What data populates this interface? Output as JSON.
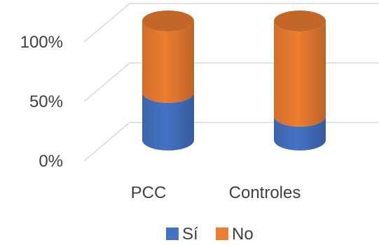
{
  "chart_data": {
    "type": "bar",
    "variant": "stacked-100-percent-3d-cylinder",
    "title": "",
    "xlabel": "",
    "ylabel": "",
    "categories": [
      "PCC",
      "Controles"
    ],
    "series": [
      {
        "name": "Sí",
        "values": [
          40,
          20
        ],
        "color": "#4472C4"
      },
      {
        "name": "No",
        "values": [
          60,
          80
        ],
        "color": "#ED7D31"
      }
    ],
    "ylim": [
      0,
      100
    ],
    "yticks": [
      "0%",
      "50%",
      "100%"
    ],
    "grid": true,
    "legend_position": "bottom"
  }
}
